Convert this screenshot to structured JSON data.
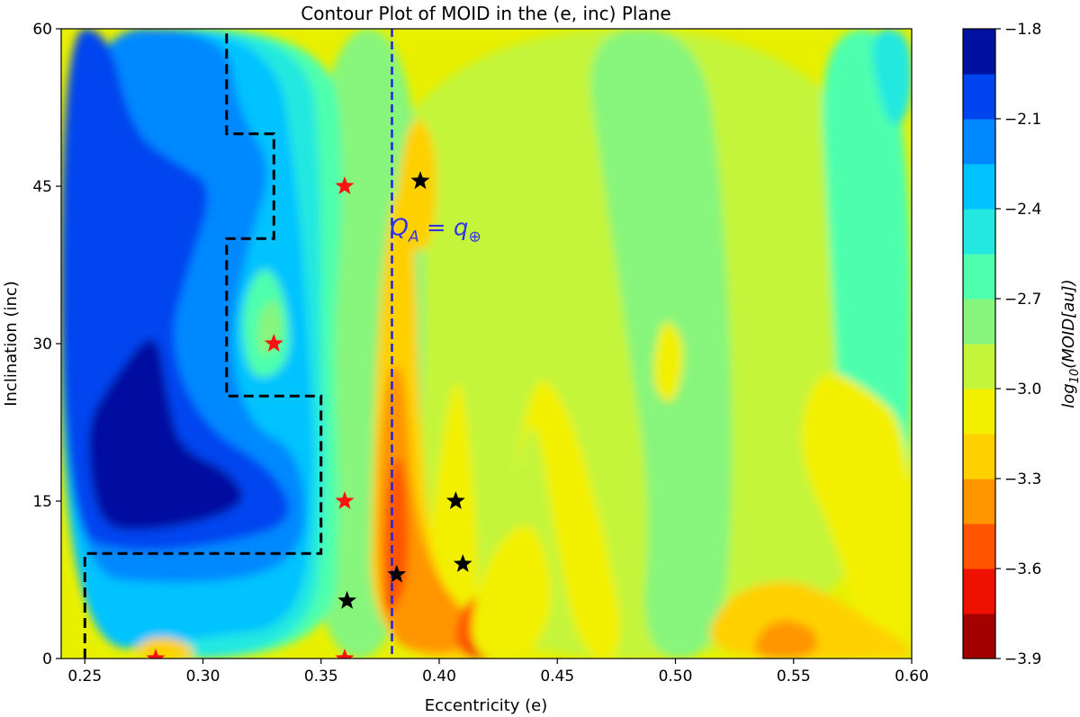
{
  "chart_data": {
    "type": "heatmap",
    "subtype": "filled-contour",
    "title": "Contour Plot of MOID in the (e, inc) Plane",
    "xlabel": "Eccentricity (e)",
    "ylabel": "Inclination (inc)",
    "xlim": [
      0.24,
      0.6
    ],
    "ylim": [
      0,
      60
    ],
    "xticks": [
      0.25,
      0.3,
      0.35,
      0.4,
      0.45,
      0.5,
      0.55,
      0.6
    ],
    "xtick_labels": [
      "0.25",
      "0.30",
      "0.35",
      "0.40",
      "0.45",
      "0.50",
      "0.55",
      "0.60"
    ],
    "yticks": [
      0,
      15,
      30,
      45,
      60
    ],
    "ytick_labels": [
      "0",
      "15",
      "30",
      "45",
      "60"
    ],
    "grid": false,
    "colorbar": {
      "label_base": "log",
      "label_sub": "10",
      "label_rest": "(MOID[au])",
      "min": -3.9,
      "max": -1.8,
      "ticks": [
        -1.8,
        -2.1,
        -2.4,
        -2.7,
        -3.0,
        -3.3,
        -3.6,
        -3.9
      ],
      "tick_labels": [
        "−1.8",
        "−2.1",
        "−2.4",
        "−2.7",
        "−3.0",
        "−3.3",
        "−3.6",
        "−3.9"
      ],
      "bands": [
        {
          "from": -3.9,
          "to": -3.75,
          "color": "#a30000"
        },
        {
          "from": -3.75,
          "to": -3.6,
          "color": "#ee1100"
        },
        {
          "from": -3.6,
          "to": -3.45,
          "color": "#ff5500"
        },
        {
          "from": -3.45,
          "to": -3.3,
          "color": "#ff9500"
        },
        {
          "from": -3.3,
          "to": -3.15,
          "color": "#ffd000"
        },
        {
          "from": -3.15,
          "to": -3.0,
          "color": "#f2f000"
        },
        {
          "from": -3.0,
          "to": -2.85,
          "color": "#c4f53a"
        },
        {
          "from": -2.85,
          "to": -2.7,
          "color": "#87f57c"
        },
        {
          "from": -2.7,
          "to": -2.55,
          "color": "#4effad"
        },
        {
          "from": -2.55,
          "to": -2.4,
          "color": "#22e8e0"
        },
        {
          "from": -2.4,
          "to": -2.25,
          "color": "#00c3ff"
        },
        {
          "from": -2.25,
          "to": -2.1,
          "color": "#0088ff"
        },
        {
          "from": -2.1,
          "to": -1.95,
          "color": "#0044f0"
        },
        {
          "from": -1.95,
          "to": -1.8,
          "color": "#0010a0"
        }
      ]
    },
    "vertical_line": {
      "x": 0.38,
      "color": "#2222dd",
      "style": "dashed"
    },
    "annotation": {
      "base": "Q",
      "sub_base": "A",
      "eq": " = q",
      "sub_q": "⊕",
      "x": 0.38,
      "y": 41,
      "color": "#3333ee"
    },
    "boundary": {
      "color": "#000000",
      "style": "dashed",
      "points": [
        [
          0.25,
          0
        ],
        [
          0.25,
          10
        ],
        [
          0.35,
          10
        ],
        [
          0.35,
          25
        ],
        [
          0.31,
          25
        ],
        [
          0.31,
          40
        ],
        [
          0.33,
          40
        ],
        [
          0.33,
          50
        ],
        [
          0.31,
          50
        ],
        [
          0.31,
          60
        ]
      ]
    },
    "markers": {
      "red": {
        "color": "#ff1111",
        "points": [
          [
            0.28,
            0
          ],
          [
            0.36,
            0
          ],
          [
            0.36,
            15
          ],
          [
            0.33,
            30
          ],
          [
            0.36,
            45
          ]
        ]
      },
      "black": {
        "color": "#000000",
        "points": [
          [
            0.361,
            5.5
          ],
          [
            0.382,
            8
          ],
          [
            0.41,
            9
          ],
          [
            0.407,
            15
          ],
          [
            0.392,
            45.5
          ]
        ]
      }
    },
    "contour_regions": [
      {
        "level": -3.0,
        "points": [
          [
            0.36,
            0
          ],
          [
            0.36,
            60
          ],
          [
            0.6,
            60
          ],
          [
            0.6,
            0
          ]
        ]
      },
      {
        "level": -2.85,
        "points": [
          [
            0.34,
            0
          ],
          [
            0.345,
            60
          ],
          [
            0.395,
            60
          ],
          [
            0.392,
            0
          ]
        ]
      },
      {
        "level": -2.85,
        "points": [
          [
            0.46,
            60
          ],
          [
            0.47,
            45
          ],
          [
            0.48,
            30
          ],
          [
            0.49,
            15
          ],
          [
            0.485,
            0
          ],
          [
            0.52,
            0
          ],
          [
            0.525,
            20
          ],
          [
            0.52,
            45
          ],
          [
            0.51,
            60
          ]
        ]
      },
      {
        "level": -2.7,
        "points": [
          [
            0.56,
            60
          ],
          [
            0.565,
            40
          ],
          [
            0.57,
            20
          ],
          [
            0.57,
            5
          ],
          [
            0.6,
            0
          ],
          [
            0.6,
            60
          ]
        ]
      },
      {
        "level": -2.55,
        "points": [
          [
            0.58,
            60
          ],
          [
            0.59,
            50
          ],
          [
            0.6,
            52
          ],
          [
            0.6,
            60
          ]
        ]
      },
      {
        "level": -3.15,
        "points": [
          [
            0.39,
            0
          ],
          [
            0.4,
            20
          ],
          [
            0.41,
            30
          ],
          [
            0.42,
            0
          ]
        ]
      },
      {
        "level": -3.15,
        "points": [
          [
            0.43,
            15
          ],
          [
            0.44,
            25
          ],
          [
            0.45,
            10
          ],
          [
            0.46,
            0
          ],
          [
            0.48,
            0
          ],
          [
            0.47,
            12
          ],
          [
            0.455,
            24
          ],
          [
            0.44,
            28
          ]
        ]
      },
      {
        "level": -3.15,
        "points": [
          [
            0.49,
            28
          ],
          [
            0.495,
            33
          ],
          [
            0.505,
            30
          ],
          [
            0.5,
            24
          ],
          [
            0.492,
            25
          ]
        ]
      },
      {
        "level": -3.15,
        "points": [
          [
            0.55,
            20
          ],
          [
            0.56,
            28
          ],
          [
            0.58,
            26
          ],
          [
            0.6,
            22
          ],
          [
            0.6,
            0
          ],
          [
            0.58,
            0
          ],
          [
            0.57,
            10
          ]
        ]
      },
      {
        "level": -2.7,
        "points": [
          [
            0.24,
            0
          ],
          [
            0.24,
            60
          ],
          [
            0.355,
            60
          ],
          [
            0.36,
            45
          ],
          [
            0.355,
            30
          ],
          [
            0.358,
            15
          ],
          [
            0.355,
            0
          ]
        ]
      },
      {
        "level": -2.55,
        "points": [
          [
            0.24,
            0
          ],
          [
            0.24,
            60
          ],
          [
            0.345,
            60
          ],
          [
            0.35,
            45
          ],
          [
            0.35,
            30
          ],
          [
            0.352,
            15
          ],
          [
            0.345,
            0
          ]
        ]
      },
      {
        "level": -2.4,
        "points": [
          [
            0.24,
            0
          ],
          [
            0.24,
            60
          ],
          [
            0.33,
            60
          ],
          [
            0.34,
            45
          ],
          [
            0.345,
            30
          ],
          [
            0.348,
            15
          ],
          [
            0.34,
            3
          ],
          [
            0.3,
            2
          ]
        ]
      },
      {
        "level": -2.25,
        "points": [
          [
            0.24,
            8
          ],
          [
            0.24,
            60
          ],
          [
            0.31,
            60
          ],
          [
            0.315,
            52
          ],
          [
            0.33,
            47
          ],
          [
            0.32,
            40
          ],
          [
            0.31,
            30
          ],
          [
            0.32,
            22
          ],
          [
            0.34,
            20
          ],
          [
            0.345,
            12
          ],
          [
            0.33,
            8
          ],
          [
            0.29,
            7
          ]
        ]
      },
      {
        "level": -2.1,
        "points": [
          [
            0.24,
            12
          ],
          [
            0.24,
            60
          ],
          [
            0.26,
            60
          ],
          [
            0.27,
            50
          ],
          [
            0.29,
            47
          ],
          [
            0.305,
            45
          ],
          [
            0.295,
            38
          ],
          [
            0.285,
            30
          ],
          [
            0.3,
            22
          ],
          [
            0.33,
            18
          ],
          [
            0.34,
            13
          ],
          [
            0.31,
            11
          ],
          [
            0.27,
            10
          ]
        ]
      },
      {
        "level": -1.95,
        "points": [
          [
            0.255,
            13
          ],
          [
            0.25,
            22
          ],
          [
            0.26,
            26
          ],
          [
            0.28,
            32
          ],
          [
            0.285,
            25
          ],
          [
            0.29,
            20
          ],
          [
            0.31,
            18
          ],
          [
            0.32,
            15
          ],
          [
            0.3,
            13
          ],
          [
            0.27,
            12
          ]
        ]
      },
      {
        "level": -2.7,
        "points": [
          [
            0.32,
            26
          ],
          [
            0.315,
            33
          ],
          [
            0.325,
            38
          ],
          [
            0.335,
            35
          ],
          [
            0.338,
            28
          ]
        ]
      },
      {
        "level": -2.85,
        "points": [
          [
            0.325,
            28
          ],
          [
            0.322,
            32
          ],
          [
            0.33,
            35
          ],
          [
            0.335,
            31
          ]
        ]
      },
      {
        "level": -3.3,
        "points": [
          [
            0.37,
            0
          ],
          [
            0.372,
            20
          ],
          [
            0.375,
            35
          ],
          [
            0.38,
            44
          ],
          [
            0.385,
            45
          ],
          [
            0.39,
            40
          ],
          [
            0.392,
            20
          ],
          [
            0.4,
            5
          ],
          [
            0.44,
            0
          ]
        ]
      },
      {
        "level": -3.45,
        "points": [
          [
            0.373,
            2
          ],
          [
            0.375,
            25
          ],
          [
            0.385,
            30
          ],
          [
            0.39,
            10
          ],
          [
            0.42,
            2
          ],
          [
            0.4,
            0
          ]
        ]
      },
      {
        "level": -3.6,
        "points": [
          [
            0.376,
            5
          ],
          [
            0.378,
            18
          ],
          [
            0.385,
            20
          ],
          [
            0.388,
            8
          ],
          [
            0.38,
            4
          ]
        ]
      },
      {
        "level": -3.6,
        "points": [
          [
            0.405,
            0
          ],
          [
            0.41,
            6
          ],
          [
            0.43,
            6
          ],
          [
            0.435,
            0
          ]
        ]
      },
      {
        "level": -3.75,
        "points": [
          [
            0.41,
            0
          ],
          [
            0.415,
            3
          ],
          [
            0.425,
            3
          ],
          [
            0.428,
            0
          ]
        ]
      },
      {
        "level": -3.3,
        "points": [
          [
            0.27,
            0
          ],
          [
            0.275,
            2
          ],
          [
            0.29,
            2
          ],
          [
            0.3,
            0
          ]
        ]
      },
      {
        "level": -3.3,
        "points": [
          [
            0.38,
            40
          ],
          [
            0.385,
            50
          ],
          [
            0.392,
            52
          ],
          [
            0.4,
            48
          ],
          [
            0.397,
            38
          ]
        ]
      },
      {
        "level": -3.3,
        "points": [
          [
            0.51,
            0
          ],
          [
            0.52,
            6
          ],
          [
            0.55,
            8
          ],
          [
            0.58,
            4
          ],
          [
            0.6,
            1
          ],
          [
            0.6,
            0
          ]
        ]
      },
      {
        "level": -3.45,
        "points": [
          [
            0.53,
            0
          ],
          [
            0.54,
            4
          ],
          [
            0.56,
            3
          ],
          [
            0.56,
            0
          ]
        ]
      },
      {
        "level": -3.15,
        "points": [
          [
            0.41,
            0
          ],
          [
            0.42,
            10
          ],
          [
            0.44,
            14
          ],
          [
            0.45,
            6
          ],
          [
            0.44,
            0
          ]
        ]
      }
    ]
  }
}
